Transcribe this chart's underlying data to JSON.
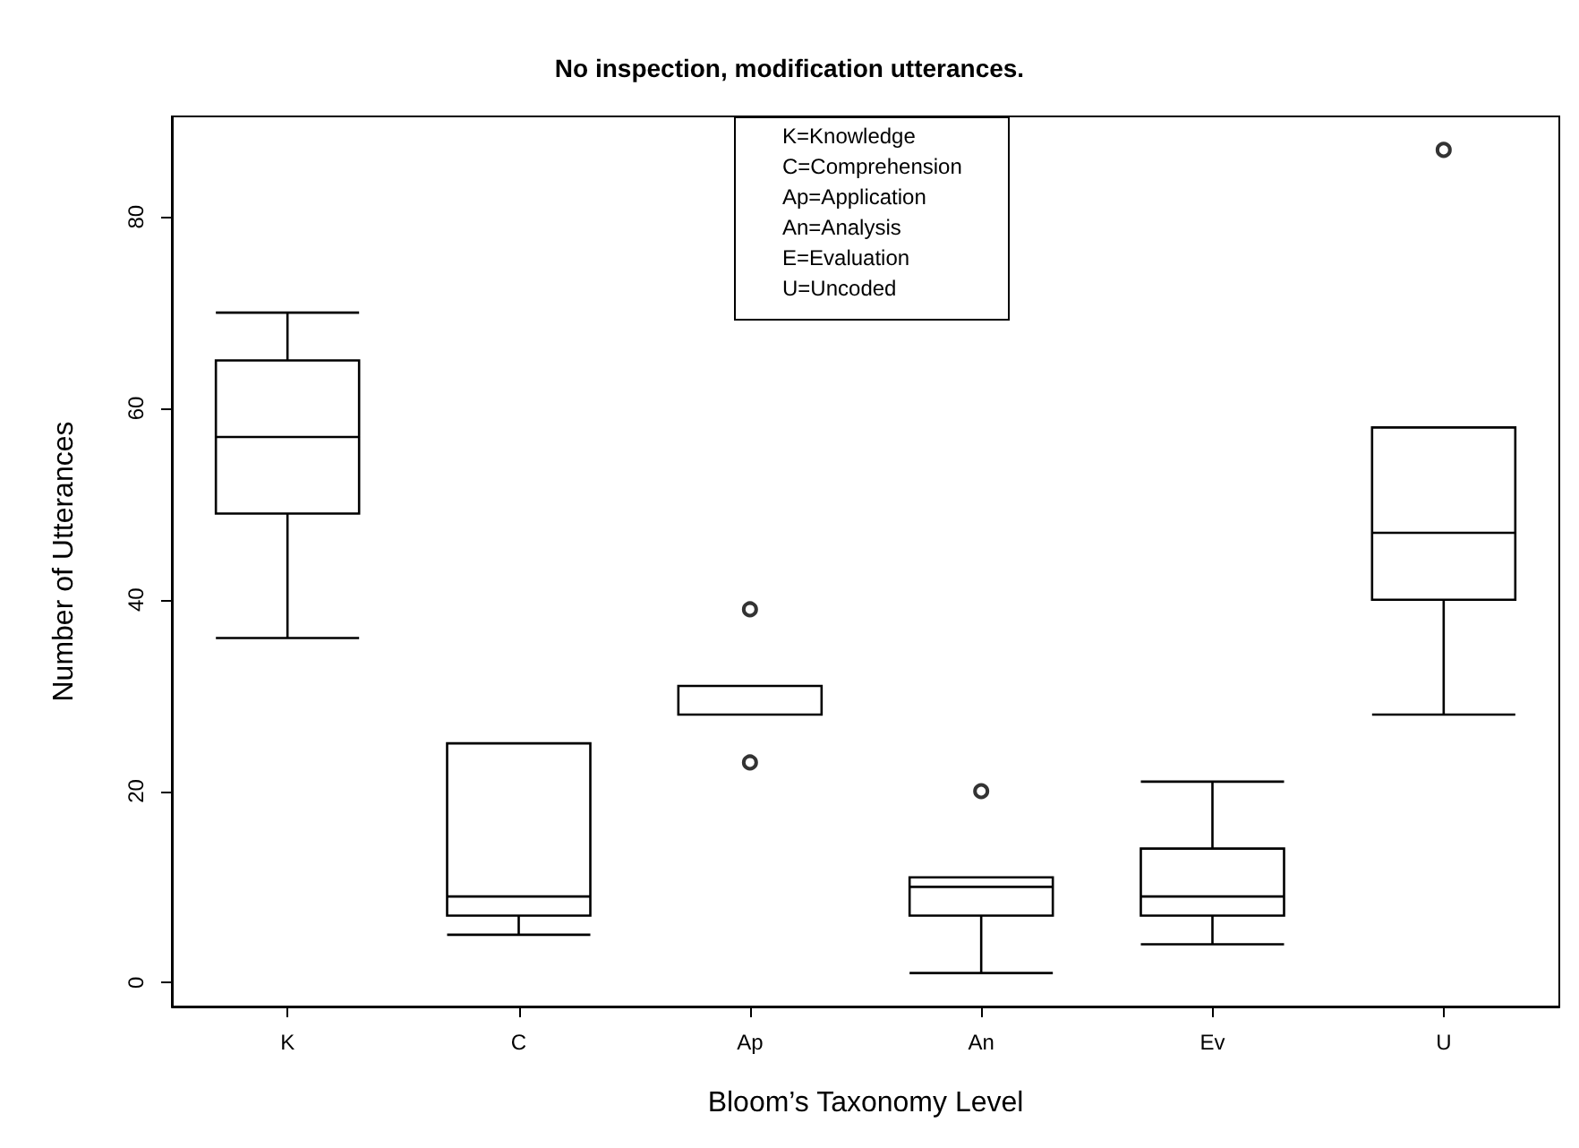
{
  "chart_data": {
    "type": "box",
    "title": "No inspection, modification utterances.",
    "xlabel": "Bloom’s Taxonomy Level",
    "ylabel": "Number of Utterances",
    "categories": [
      "K",
      "C",
      "Ap",
      "An",
      "Ev",
      "U"
    ],
    "boxes": [
      {
        "low": 36,
        "q1": 49,
        "median": 57,
        "q3": 65,
        "high": 70
      },
      {
        "low": 5,
        "q1": 7,
        "median": 9,
        "q3": 25,
        "high": 25
      },
      {
        "low": 28,
        "q1": 28,
        "median": 28,
        "q3": 31,
        "high": 31,
        "outliers": [
          39,
          23
        ]
      },
      {
        "low": 1,
        "q1": 7,
        "median": 10,
        "q3": 11,
        "high": 11,
        "outliers": [
          20
        ]
      },
      {
        "low": 4,
        "q1": 7,
        "median": 9,
        "q3": 14,
        "high": 21
      },
      {
        "low": 28,
        "q1": 40,
        "median": 47,
        "q3": 58,
        "high": 58,
        "outliers": [
          87
        ]
      }
    ],
    "color": "#000000",
    "ylim": [
      -2.5,
      90.5
    ],
    "yticks": [
      0,
      20,
      40,
      60,
      80
    ],
    "annotations": [
      "K=Knowledge",
      "C=Comprehension",
      "Ap=Application",
      "An=Analysis",
      "E=Evaluation",
      "U=Uncoded"
    ]
  }
}
